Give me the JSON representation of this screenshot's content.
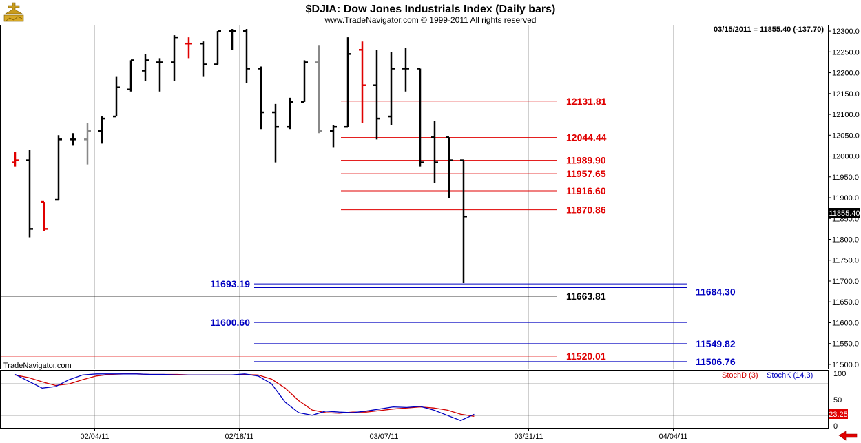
{
  "header": {
    "title": "$DJIA:  Dow Jones Industrials Index  (Daily bars)",
    "subtitle": "www.TradeNavigator.com © 1999-2011 All rights reserved",
    "last_quote": "03/15/2011 = 11855.40 (-137.70)",
    "watermark": "TradeNavigator.com"
  },
  "colors": {
    "up_bar": "#000000",
    "down_bar": "#e00000",
    "neutral_bar": "#888888",
    "resistance_line": "#e00000",
    "support_line": "#0000c0",
    "stoch_d": "#d00000",
    "stoch_k": "#0000c0",
    "grid": "#cfcfcf"
  },
  "chart_data": {
    "type": "ohlc",
    "price_axis": {
      "ylim": [
        11490,
        12315
      ],
      "ticks": [
        "12300.0",
        "12250.0",
        "12200.0",
        "12150.0",
        "12100.0",
        "12050.0",
        "12000.0",
        "11950.0",
        "11900.0",
        "11850.0",
        "11800.0",
        "11750.0",
        "11700.0",
        "11650.0",
        "11600.0",
        "11550.0",
        "11500.0"
      ],
      "last_value": "11855.40"
    },
    "x_axis": {
      "labels": [
        "02/04/11",
        "02/18/11",
        "03/07/11",
        "03/21/11",
        "04/04/11"
      ]
    },
    "bars": [
      {
        "o": 11985,
        "h": 12010,
        "l": 11975,
        "c": 11990,
        "color": "red"
      },
      {
        "o": 11990,
        "h": 12015,
        "l": 11805,
        "c": 11825,
        "color": "black"
      },
      {
        "o": 11890,
        "h": 11890,
        "l": 11820,
        "c": 11825,
        "color": "red"
      },
      {
        "o": 11895,
        "h": 12050,
        "l": 11895,
        "c": 12040,
        "color": "black"
      },
      {
        "o": 12040,
        "h": 12055,
        "l": 12025,
        "c": 12040,
        "color": "black"
      },
      {
        "o": 12040,
        "h": 12080,
        "l": 11980,
        "c": 12060,
        "color": "gray"
      },
      {
        "o": 12060,
        "h": 12095,
        "l": 12030,
        "c": 12090,
        "color": "black"
      },
      {
        "o": 12095,
        "h": 12190,
        "l": 12095,
        "c": 12165,
        "color": "black"
      },
      {
        "o": 12160,
        "h": 12230,
        "l": 12155,
        "c": 12230,
        "color": "black"
      },
      {
        "o": 12205,
        "h": 12245,
        "l": 12180,
        "c": 12230,
        "color": "black"
      },
      {
        "o": 12225,
        "h": 12235,
        "l": 12155,
        "c": 12225,
        "color": "black"
      },
      {
        "o": 12225,
        "h": 12290,
        "l": 12180,
        "c": 12285,
        "color": "black"
      },
      {
        "o": 12270,
        "h": 12285,
        "l": 12235,
        "c": 12270,
        "color": "red"
      },
      {
        "o": 12270,
        "h": 12275,
        "l": 12190,
        "c": 12220,
        "color": "black"
      },
      {
        "o": 12220,
        "h": 12300,
        "l": 12220,
        "c": 12300,
        "color": "black"
      },
      {
        "o": 12300,
        "h": 12305,
        "l": 12255,
        "c": 12300,
        "color": "black"
      },
      {
        "o": 12300,
        "h": 12305,
        "l": 12175,
        "c": 12210,
        "color": "black"
      },
      {
        "o": 12210,
        "h": 12215,
        "l": 12065,
        "c": 12105,
        "color": "black"
      },
      {
        "o": 12105,
        "h": 12125,
        "l": 11985,
        "c": 12070,
        "color": "black"
      },
      {
        "o": 12070,
        "h": 12140,
        "l": 12065,
        "c": 12130,
        "color": "black"
      },
      {
        "o": 12130,
        "h": 12230,
        "l": 12130,
        "c": 12225,
        "color": "black"
      },
      {
        "o": 12225,
        "h": 12265,
        "l": 12055,
        "c": 12060,
        "color": "gray"
      },
      {
        "o": 12060,
        "h": 12075,
        "l": 12020,
        "c": 12070,
        "color": "black"
      },
      {
        "o": 12070,
        "h": 12285,
        "l": 12070,
        "c": 12245,
        "color": "black"
      },
      {
        "o": 12255,
        "h": 12275,
        "l": 12080,
        "c": 12170,
        "color": "red"
      },
      {
        "o": 12170,
        "h": 12255,
        "l": 12040,
        "c": 12090,
        "color": "black"
      },
      {
        "o": 12095,
        "h": 12250,
        "l": 12075,
        "c": 12210,
        "color": "black"
      },
      {
        "o": 12210,
        "h": 12260,
        "l": 12155,
        "c": 12210,
        "color": "black"
      },
      {
        "o": 12210,
        "h": 12210,
        "l": 11975,
        "c": 11985,
        "color": "black"
      },
      {
        "o": 12045,
        "h": 12085,
        "l": 11935,
        "c": 11985,
        "color": "black"
      },
      {
        "o": 12045,
        "h": 12045,
        "l": 11900,
        "c": 11990,
        "color": "black"
      },
      {
        "o": 11990,
        "h": 11990,
        "l": 11695,
        "c": 11855,
        "color": "black"
      }
    ],
    "levels": [
      {
        "value": 12131.81,
        "label": "12131.81",
        "color": "red",
        "x_start_bar": 23,
        "x_end_bar": 37,
        "label_side": "right"
      },
      {
        "value": 12044.44,
        "label": "12044.44",
        "color": "red",
        "x_start_bar": 23,
        "x_end_bar": 37,
        "label_side": "right"
      },
      {
        "value": 11989.9,
        "label": "11989.90",
        "color": "red",
        "x_start_bar": 23,
        "x_end_bar": 37,
        "label_side": "right"
      },
      {
        "value": 11957.65,
        "label": "11957.65",
        "color": "red",
        "x_start_bar": 23,
        "x_end_bar": 37,
        "label_side": "right"
      },
      {
        "value": 11916.6,
        "label": "11916.60",
        "color": "red",
        "x_start_bar": 23,
        "x_end_bar": 37,
        "label_side": "right"
      },
      {
        "value": 11870.86,
        "label": "11870.86",
        "color": "red",
        "x_start_bar": 23,
        "x_end_bar": 37,
        "label_side": "right"
      },
      {
        "value": 11693.19,
        "label": "11693.19",
        "color": "blue",
        "x_start_bar": 17,
        "x_end_bar": 46,
        "label_side": "left"
      },
      {
        "value": 11684.3,
        "label": "11684.30",
        "color": "blue",
        "x_start_bar": 17,
        "x_end_bar": 46,
        "label_side": "farright"
      },
      {
        "value": 11663.81,
        "label": "11663.81",
        "color": "black",
        "x_start_bar": -2,
        "x_end_bar": 37,
        "label_side": "right"
      },
      {
        "value": 11600.6,
        "label": "11600.60",
        "color": "blue",
        "x_start_bar": 17,
        "x_end_bar": 46,
        "label_side": "left"
      },
      {
        "value": 11549.82,
        "label": "11549.82",
        "color": "blue",
        "x_start_bar": 17,
        "x_end_bar": 46,
        "label_side": "farright"
      },
      {
        "value": 11520.01,
        "label": "11520.01",
        "color": "red",
        "x_start_bar": -2,
        "x_end_bar": 37,
        "label_side": "right"
      },
      {
        "value": 11506.76,
        "label": "11506.76",
        "color": "blue",
        "x_start_bar": 17,
        "x_end_bar": 46,
        "label_side": "farright"
      }
    ],
    "stochastic": {
      "legend_d": "StochD (3)",
      "legend_k": "StochK (14,3)",
      "ylim": [
        0,
        100
      ],
      "ticks": [
        "100",
        "50",
        "0"
      ],
      "ref_lines": [
        80,
        20
      ],
      "last_value": "23.25",
      "k": [
        98,
        85,
        72,
        75,
        88,
        97,
        99,
        99,
        99,
        99,
        98,
        98,
        97,
        97,
        97,
        97,
        97,
        99,
        95,
        80,
        45,
        25,
        20,
        28,
        26,
        25,
        28,
        32,
        36,
        35,
        37,
        30,
        20,
        10,
        22
      ],
      "d": [
        97,
        92,
        84,
        77,
        80,
        88,
        95,
        98,
        99,
        99,
        98,
        98,
        98,
        97,
        97,
        97,
        97,
        98,
        97,
        89,
        72,
        48,
        30,
        25,
        24,
        26,
        26,
        29,
        32,
        34,
        36,
        34,
        30,
        22,
        18
      ]
    }
  }
}
